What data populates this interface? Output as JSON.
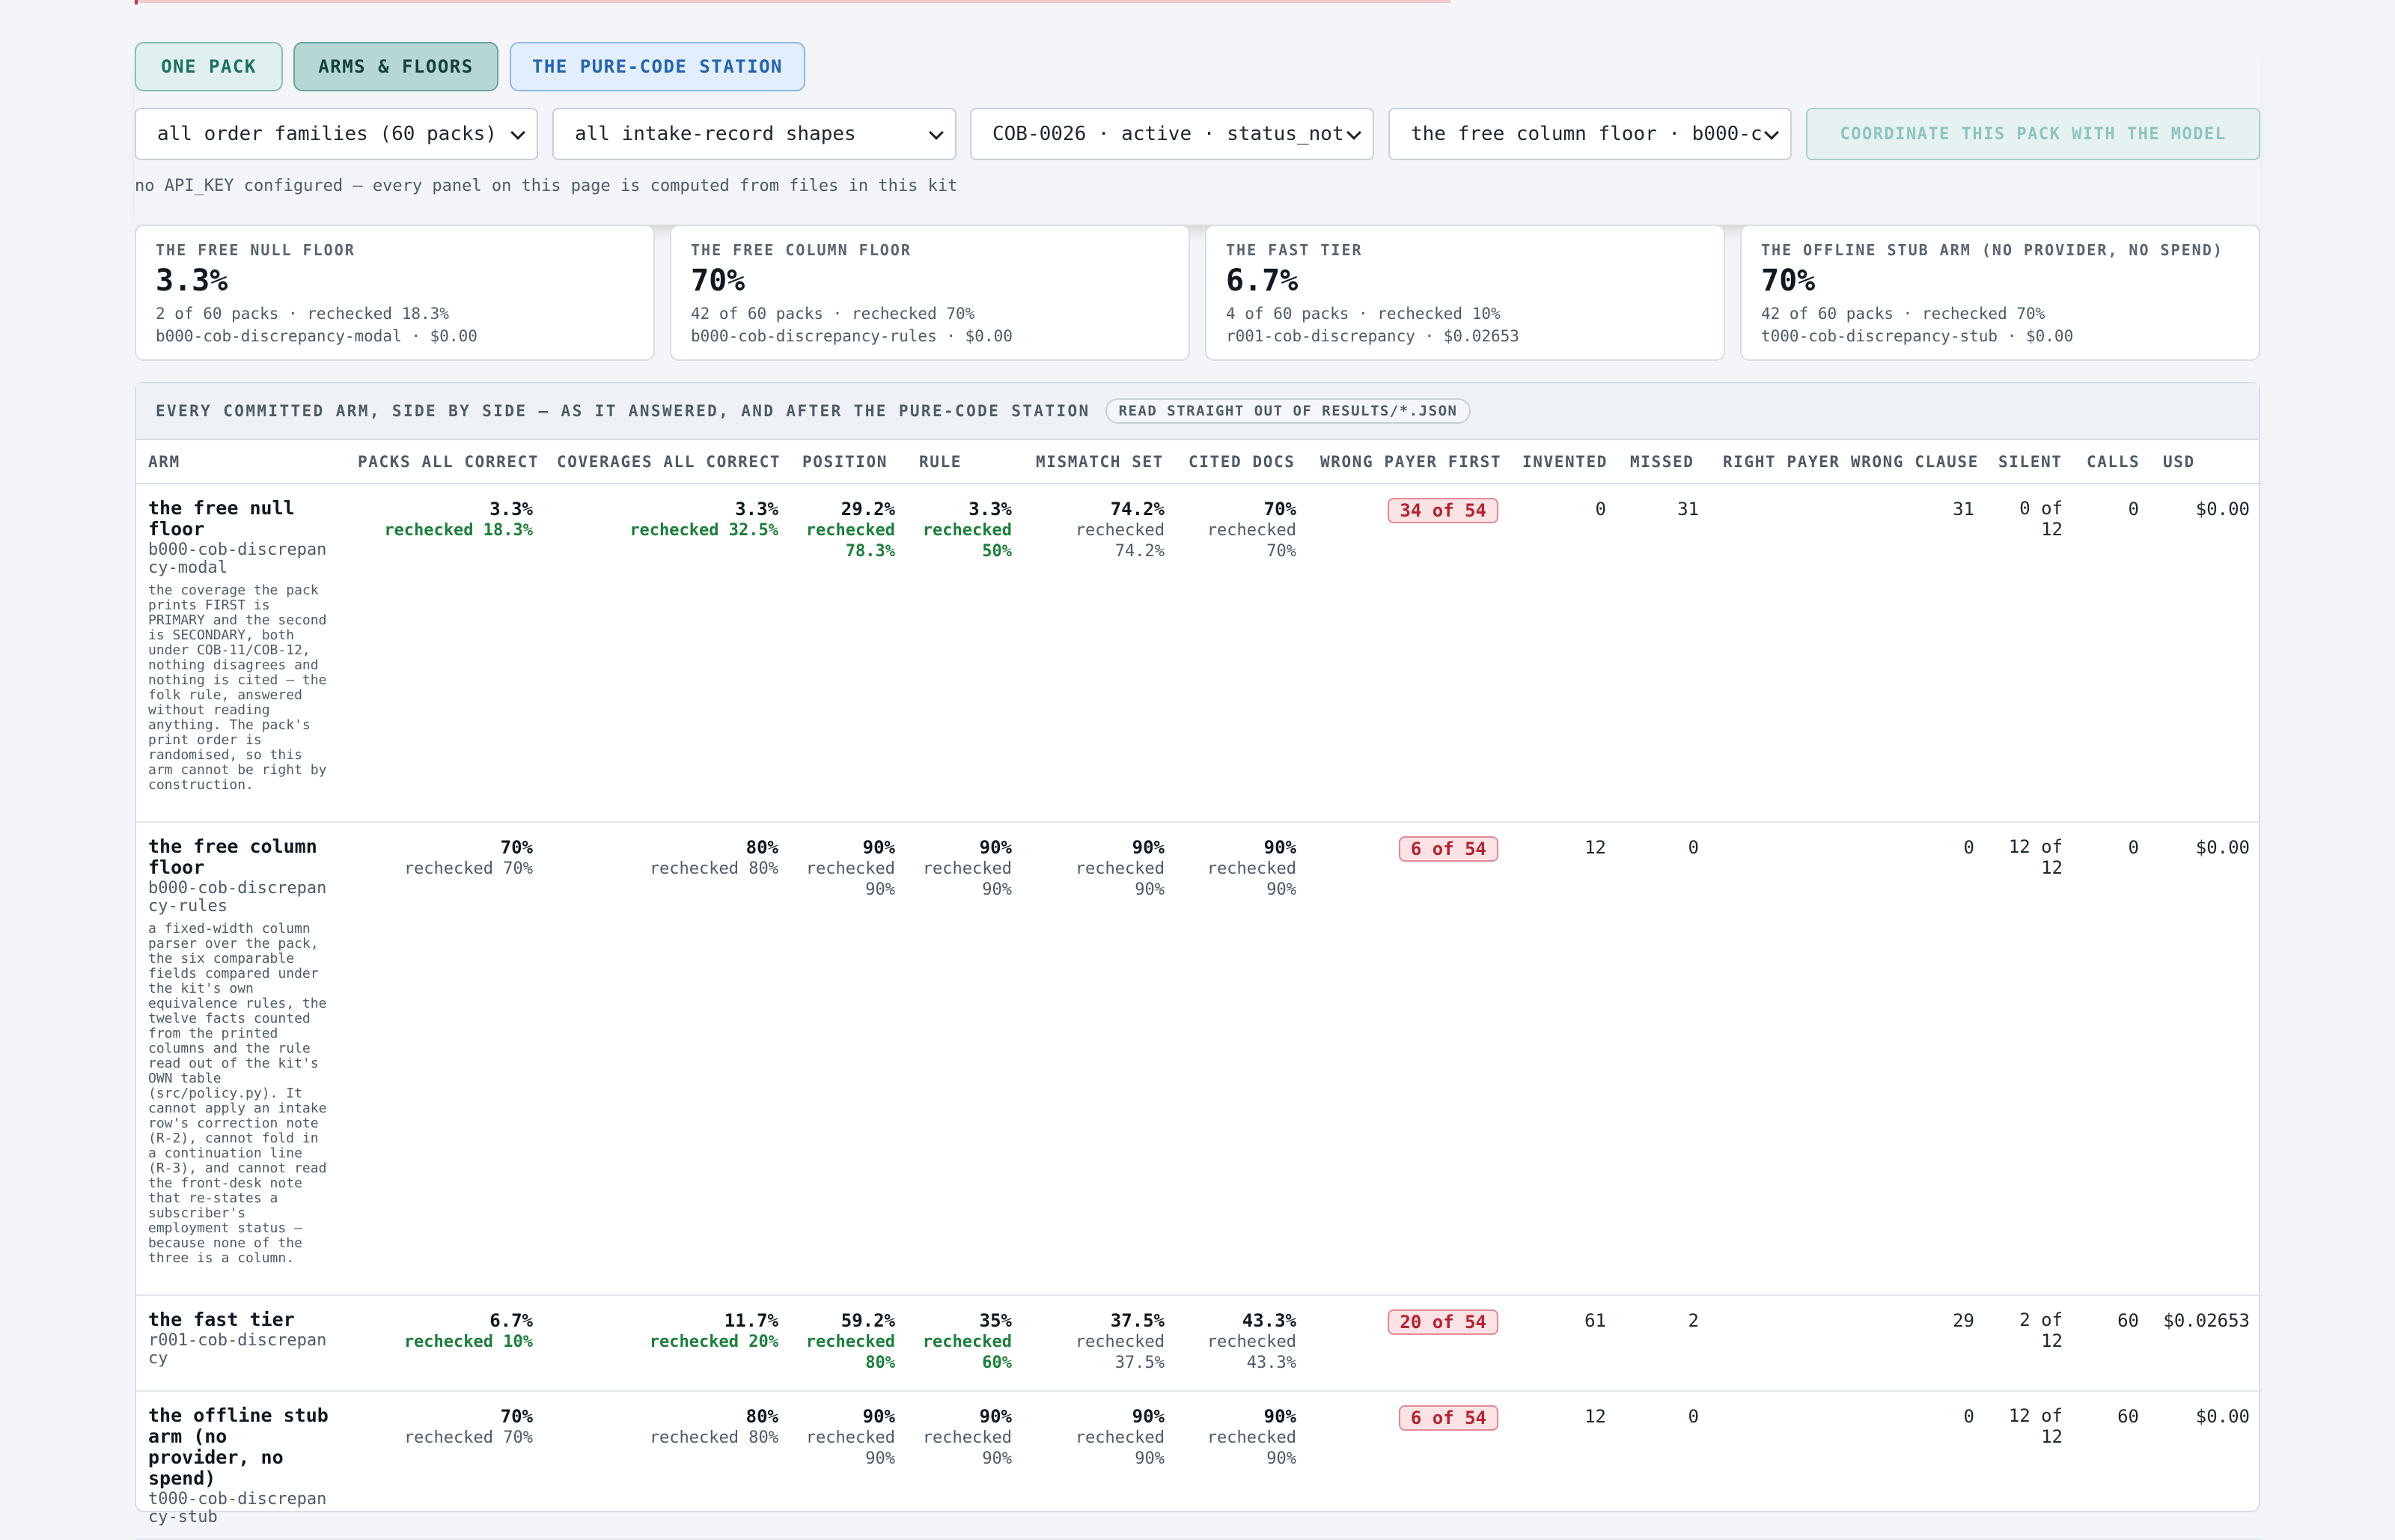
{
  "tabs": [
    {
      "label": "ONE PACK"
    },
    {
      "label": "ARMS & FLOORS"
    },
    {
      "label": "THE PURE-CODE STATION"
    }
  ],
  "filters": {
    "order_family": "all order families (60 packs)",
    "intake_shape": "all intake-record shapes",
    "pack": "COB-0026 · active · status_not",
    "arm": "the free column floor · b000-c",
    "coordinate_button": "COORDINATE THIS PACK WITH THE MODEL"
  },
  "api_note": "no API_KEY configured — every panel on this page is computed from files in this kit",
  "cards": [
    {
      "label": "THE FREE NULL FLOOR",
      "value": "3.3%",
      "line1": "2 of 60 packs · rechecked 18.3%",
      "line2": "b000-cob-discrepancy-modal · $0.00"
    },
    {
      "label": "THE FREE COLUMN FLOOR",
      "value": "70%",
      "line1": "42 of 60 packs · rechecked 70%",
      "line2": "b000-cob-discrepancy-rules · $0.00"
    },
    {
      "label": "THE FAST TIER",
      "value": "6.7%",
      "line1": "4 of 60 packs · rechecked 10%",
      "line2": "r001-cob-discrepancy · $0.02653"
    },
    {
      "label": "THE OFFLINE STUB ARM (NO PROVIDER, NO SPEND)",
      "value": "70%",
      "line1": "42 of 60 packs · rechecked 70%",
      "line2": "t000-cob-discrepancy-stub · $0.00"
    }
  ],
  "table": {
    "title": "EVERY COMMITTED ARM, SIDE BY SIDE — AS IT ANSWERED, AND AFTER THE PURE-CODE STATION",
    "badge": "READ STRAIGHT OUT OF RESULTS/*.JSON",
    "columns": [
      "ARM",
      "PACKS ALL CORRECT",
      "COVERAGES ALL CORRECT",
      "POSITION",
      "RULE",
      "MISMATCH SET",
      "CITED DOCS",
      "WRONG PAYER FIRST",
      "INVENTED",
      "MISSED",
      "RIGHT PAYER WRONG CLAUSE",
      "SILENT",
      "CALLS",
      "USD"
    ],
    "rows": [
      {
        "name": "the free null floor",
        "id": "b000-cob-discrepancy-modal",
        "desc": "the coverage the pack prints FIRST is PRIMARY and the second is SECONDARY, both under COB-11/COB-12, nothing disagrees and nothing is cited — the folk rule, answered without reading anything. The pack's print order is randomised, so this arm cannot be right by construction.",
        "packs": "3.3%",
        "packs_rc": "rechecked 18.3%",
        "coverages": "3.3%",
        "coverages_rc": "rechecked 32.5%",
        "position": "29.2%",
        "position_rc": "rechecked 78.3%",
        "rule": "3.3%",
        "rule_rc": "rechecked 50%",
        "mismatch": "74.2%",
        "mismatch_rc": "rechecked 74.2%",
        "cited": "70%",
        "cited_rc": "rechecked 70%",
        "wrong_payer": "34 of 54",
        "invented": "0",
        "missed": "31",
        "right_payer": "31",
        "silent": "0 of 12",
        "calls": "0",
        "usd": "$0.00"
      },
      {
        "name": "the free column floor",
        "id": "b000-cob-discrepancy-rules",
        "desc": "a fixed-width column parser over the pack, the six comparable fields compared under the kit's own equivalence rules, the twelve facts counted from the printed columns and the rule read out of the kit's OWN table (src/policy.py). It cannot apply an intake row's correction note (R-2), cannot fold in a continuation line (R-3), and cannot read the front-desk note that re-states a subscriber's employment status — because none of the three is a column.",
        "packs": "70%",
        "packs_rc": "rechecked 70%",
        "coverages": "80%",
        "coverages_rc": "rechecked 80%",
        "position": "90%",
        "position_rc": "rechecked 90%",
        "rule": "90%",
        "rule_rc": "rechecked 90%",
        "mismatch": "90%",
        "mismatch_rc": "rechecked 90%",
        "cited": "90%",
        "cited_rc": "rechecked 90%",
        "wrong_payer": "6 of 54",
        "invented": "12",
        "missed": "0",
        "right_payer": "0",
        "silent": "12 of 12",
        "calls": "0",
        "usd": "$0.00"
      },
      {
        "name": "the fast tier",
        "id": "r001-cob-discrepancy",
        "desc": "",
        "packs": "6.7%",
        "packs_rc": "rechecked 10%",
        "coverages": "11.7%",
        "coverages_rc": "rechecked 20%",
        "position": "59.2%",
        "position_rc": "rechecked 80%",
        "rule": "35%",
        "rule_rc": "rechecked 60%",
        "mismatch": "37.5%",
        "mismatch_rc": "rechecked 37.5%",
        "cited": "43.3%",
        "cited_rc": "rechecked 43.3%",
        "wrong_payer": "20 of 54",
        "invented": "61",
        "missed": "2",
        "right_payer": "29",
        "silent": "2 of 12",
        "calls": "60",
        "usd": "$0.02653"
      },
      {
        "name": "the offline stub arm (no provider, no spend)",
        "id": "t000-cob-discrepancy-stub",
        "desc": "",
        "packs": "70%",
        "packs_rc": "rechecked 70%",
        "coverages": "80%",
        "coverages_rc": "rechecked 80%",
        "position": "90%",
        "position_rc": "rechecked 90%",
        "rule": "90%",
        "rule_rc": "rechecked 90%",
        "mismatch": "90%",
        "mismatch_rc": "rechecked 90%",
        "cited": "90%",
        "cited_rc": "rechecked 90%",
        "wrong_payer": "6 of 54",
        "invented": "12",
        "missed": "0",
        "right_payer": "0",
        "silent": "12 of 12",
        "calls": "60",
        "usd": "$0.00"
      }
    ]
  }
}
